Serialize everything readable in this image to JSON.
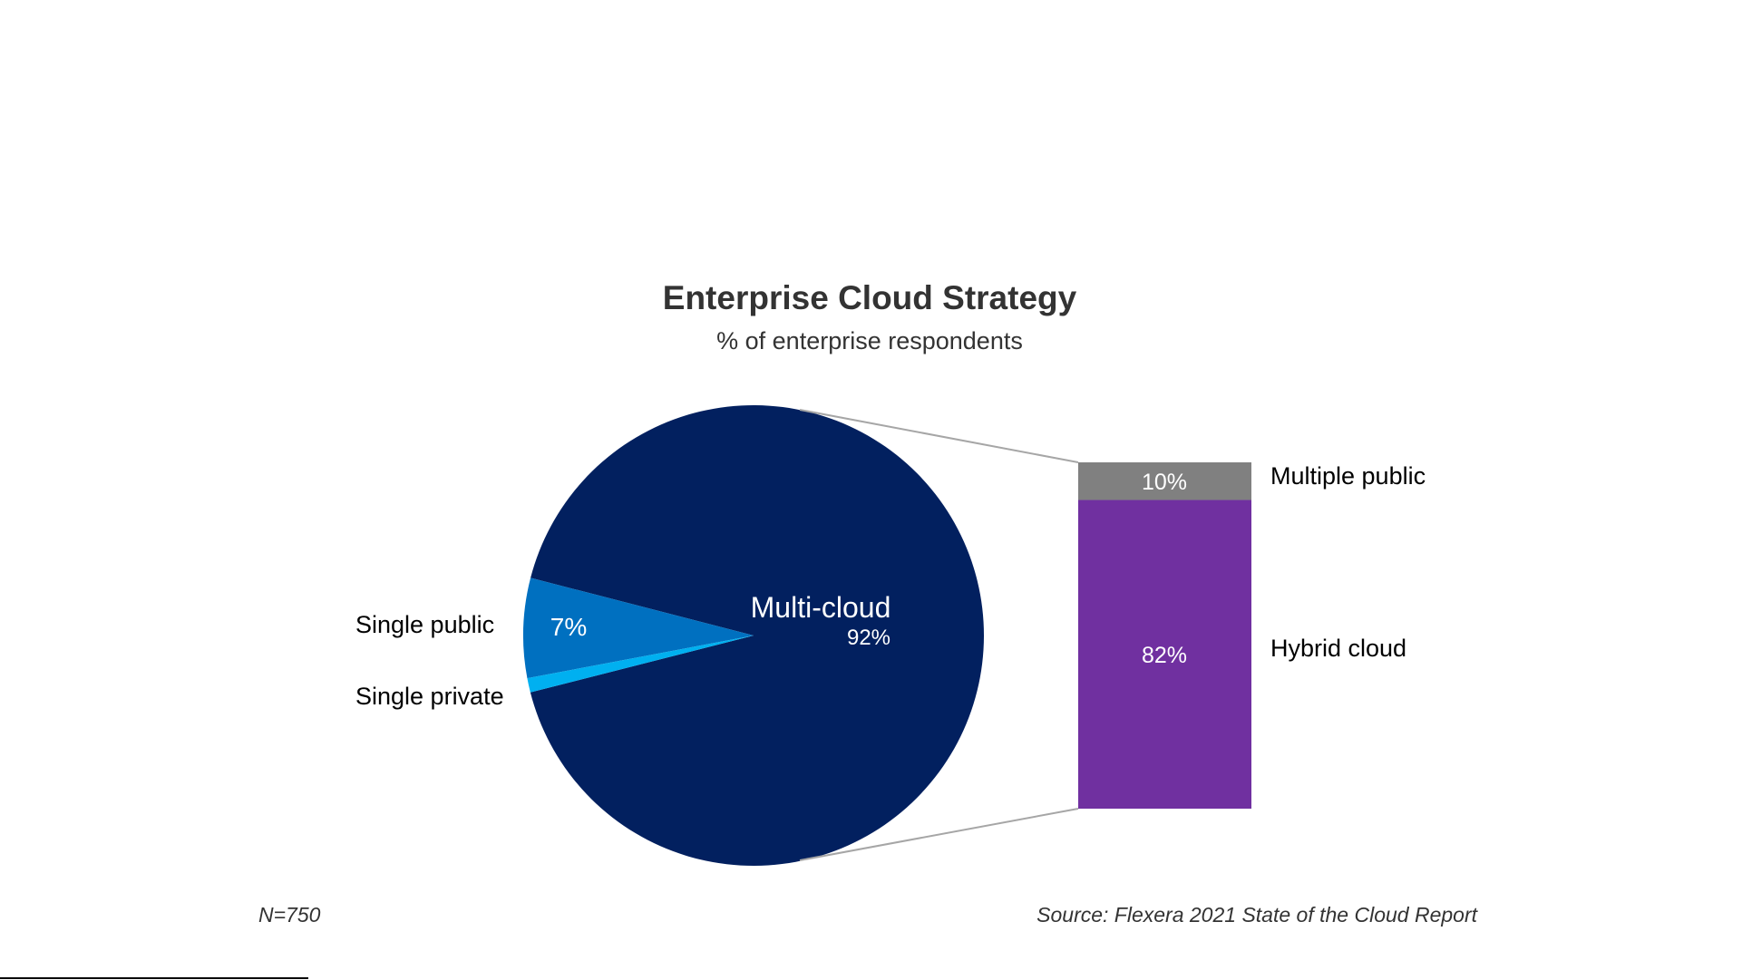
{
  "chart_data": {
    "type": "pie",
    "title": "Enterprise Cloud Strategy",
    "subtitle": "% of enterprise respondents",
    "slices": [
      {
        "name": "Multi-cloud",
        "value": 92,
        "label": "92%",
        "color": "#02205f"
      },
      {
        "name": "Single public",
        "value": 7,
        "label": "7%",
        "color": "#0070c0"
      },
      {
        "name": "Single private",
        "value": 1,
        "label": "",
        "color": "#00b0f0"
      }
    ],
    "breakdown": {
      "of": "Multi-cloud",
      "segments": [
        {
          "name": "Multiple public",
          "value": 10,
          "label": "10%",
          "color": "#808080"
        },
        {
          "name": "Hybrid cloud",
          "value": 82,
          "label": "82%",
          "color": "#7030a0"
        }
      ]
    },
    "footnote_left": "N=750",
    "footnote_right": "Source: Flexera 2021 State of the Cloud Report"
  }
}
